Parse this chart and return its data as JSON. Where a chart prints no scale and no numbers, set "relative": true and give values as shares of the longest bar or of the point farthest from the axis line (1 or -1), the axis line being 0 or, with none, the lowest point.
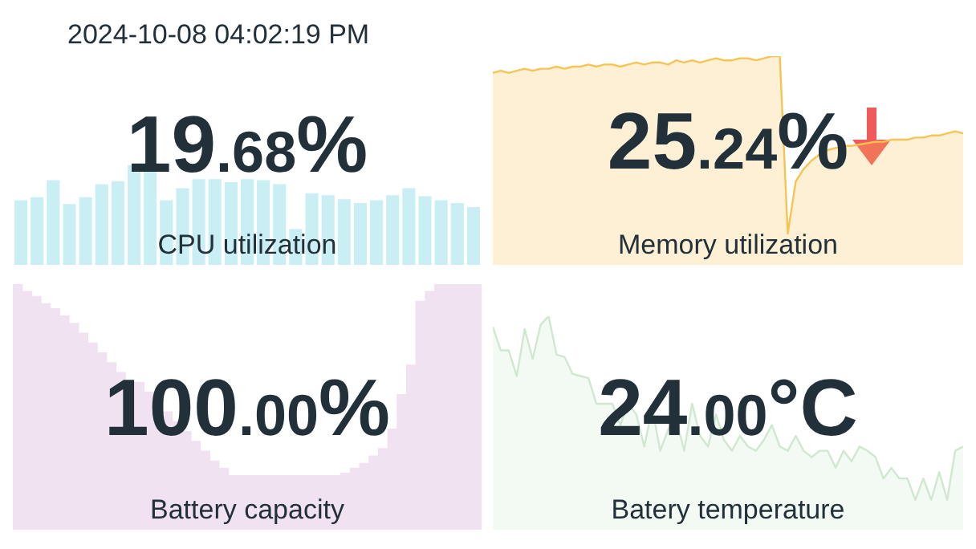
{
  "chart_data": [
    {
      "type": "bar",
      "relative": true,
      "tick_labels": false,
      "title": "19.68%",
      "xlabel": "CPU utilization",
      "annotations": [
        "2024-10-08 04:02:19 PM"
      ],
      "color": "#c9eef4",
      "categories": [
        null,
        null,
        null,
        null,
        null,
        null,
        null,
        null,
        null,
        null,
        null,
        null,
        null,
        null,
        null,
        null,
        null,
        null,
        null,
        null,
        null,
        null,
        null,
        null,
        null,
        null,
        null,
        null,
        null
      ],
      "values": [
        0.65,
        0.68,
        0.85,
        0.61,
        0.68,
        0.81,
        0.84,
        1,
        0.94,
        0.65,
        0.77,
        0.86,
        0.86,
        0.83,
        0.86,
        0.85,
        0.81,
        0.36,
        0.72,
        0.7,
        0.66,
        0.62,
        0.65,
        0.7,
        0.77,
        0.69,
        0.65,
        0.62,
        0.58
      ]
    },
    {
      "type": "area",
      "relative": true,
      "tick_labels": false,
      "title": "25.24%",
      "xlabel": "Memory utilization",
      "color": "#f6c453",
      "categories": [
        null,
        null,
        null,
        null,
        null,
        null,
        null,
        null,
        null,
        null,
        null,
        null,
        null,
        null,
        null,
        null,
        null,
        null,
        null,
        null,
        null,
        null,
        null,
        null,
        null,
        null,
        null,
        null,
        null,
        null,
        null,
        null,
        null,
        null,
        null,
        null,
        null,
        null,
        null,
        null,
        null,
        null,
        null,
        null,
        null,
        null,
        null,
        null,
        null,
        null,
        null,
        null,
        null,
        null,
        null,
        null,
        null,
        null,
        null,
        null
      ],
      "values": [
        0.92,
        0.93,
        0.92,
        0.93,
        0.94,
        0.93,
        0.94,
        0.94,
        0.95,
        0.94,
        0.95,
        0.95,
        0.96,
        0.95,
        0.96,
        0.96,
        0.95,
        0.96,
        0.97,
        0.96,
        0.97,
        0.97,
        0.96,
        0.98,
        0.97,
        0.98,
        0.97,
        0.98,
        0.99,
        0.98,
        0.98,
        0.99,
        0.99,
        0.98,
        0.99,
        1,
        1,
        0.15,
        0.4,
        0.46,
        0.5,
        0.53,
        0.55,
        0.56,
        0.57,
        0.57,
        null,
        null,
        0.59,
        0.59,
        0.6,
        0.6,
        0.6,
        0.61,
        0.61,
        0.62,
        0.62,
        0.63,
        0.64,
        0.63
      ]
    },
    {
      "type": "bar",
      "relative": true,
      "tick_labels": false,
      "title": "100.00%",
      "xlabel": "Battery capacity",
      "color": "#f1e2f2",
      "categories": [
        null,
        null,
        null,
        null,
        null,
        null,
        null,
        null,
        null,
        null,
        null,
        null,
        null,
        null,
        null,
        null,
        null,
        null,
        null,
        null,
        null,
        null,
        null,
        null,
        null,
        null,
        null,
        null,
        null,
        null,
        null,
        null,
        null,
        null,
        null,
        null,
        null,
        null,
        null,
        null,
        null,
        null,
        null,
        null,
        null,
        null,
        null,
        null,
        null,
        null
      ],
      "values": [
        1,
        0.97,
        0.95,
        0.92,
        0.9,
        0.87,
        0.84,
        0.8,
        0.76,
        0.72,
        0.68,
        0.64,
        0.6,
        0.6,
        0.56,
        0.53,
        0.48,
        0.44,
        0.4,
        0.36,
        0.32,
        0.28,
        0.25,
        0.22,
        0.22,
        0.22,
        0.22,
        0.22,
        0.22,
        0.22,
        0.22,
        0.22,
        0.22,
        0.22,
        0.22,
        0.23,
        0.25,
        0.27,
        0.3,
        0.33,
        0.41,
        0.55,
        0.67,
        0.93,
        0.97,
        1,
        1,
        1,
        1,
        1
      ]
    },
    {
      "type": "area",
      "relative": true,
      "tick_labels": false,
      "title": "24.00°C",
      "xlabel": "Batery temperature",
      "color": "#cfe8cf",
      "categories": [
        null,
        null,
        null,
        null,
        null,
        null,
        null,
        null,
        null,
        null,
        null,
        null,
        null,
        null,
        null,
        null,
        null,
        null,
        null,
        null,
        null,
        null,
        null,
        null,
        null,
        null,
        null,
        null,
        null,
        null,
        null,
        null,
        null,
        null,
        null,
        null,
        null,
        null,
        null,
        null,
        null,
        null,
        null,
        null,
        null,
        null,
        null,
        null,
        null,
        null,
        null,
        null,
        null,
        null,
        null,
        null,
        null,
        null,
        null,
        null
      ],
      "values": [
        0.95,
        0.84,
        0.84,
        0.72,
        0.94,
        0.8,
        0.96,
        1,
        0.82,
        0.81,
        0.73,
        0.72,
        0.71,
        0.59,
        0.59,
        0.59,
        0.49,
        0.59,
        0.54,
        0.39,
        0.57,
        0.37,
        0.47,
        0.52,
        0.37,
        0.59,
        0.44,
        0.39,
        0.54,
        0.42,
        0.37,
        0.44,
        0.39,
        0.37,
        0.42,
        0.49,
        0.39,
        0.37,
        0.44,
        0.37,
        0.34,
        0.37,
        0.37,
        0.29,
        0.37,
        0.32,
        0.39,
        0.37,
        0.34,
        0.24,
        0.29,
        0.24,
        0.24,
        0.14,
        0.24,
        0.14,
        0.27,
        0.14,
        0.37,
        0.39
      ]
    }
  ]
}
